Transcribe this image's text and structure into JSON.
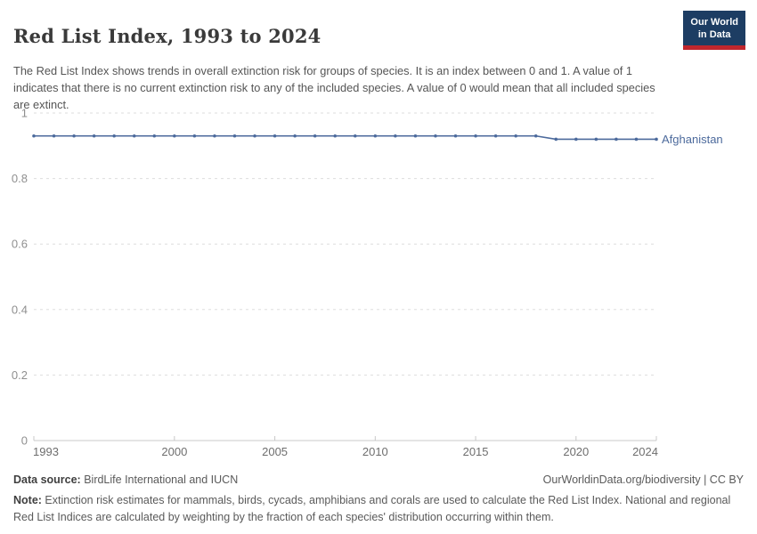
{
  "header": {
    "title": "Red List Index, 1993 to 2024",
    "subtitle": "The Red List Index shows trends in overall extinction risk for groups of species. It is an index between 0 and 1. A value of 1 indicates that there is no current extinction risk to any of the included species. A value of 0 would mean that all included species are extinct.",
    "logo": {
      "line1": "Our World",
      "line2": "in Data"
    }
  },
  "chart_data": {
    "type": "line",
    "title": "Red List Index, 1993 to 2024",
    "x": [
      1993,
      1994,
      1995,
      1996,
      1997,
      1998,
      1999,
      2000,
      2001,
      2002,
      2003,
      2004,
      2005,
      2006,
      2007,
      2008,
      2009,
      2010,
      2011,
      2012,
      2013,
      2014,
      2015,
      2016,
      2017,
      2018,
      2019,
      2020,
      2021,
      2022,
      2023,
      2024
    ],
    "series": [
      {
        "name": "Afghanistan",
        "values": [
          0.93,
          0.93,
          0.93,
          0.93,
          0.93,
          0.93,
          0.93,
          0.93,
          0.93,
          0.93,
          0.93,
          0.93,
          0.93,
          0.93,
          0.93,
          0.93,
          0.93,
          0.93,
          0.93,
          0.93,
          0.93,
          0.93,
          0.93,
          0.93,
          0.93,
          0.93,
          0.92,
          0.92,
          0.92,
          0.92,
          0.92,
          0.92
        ]
      }
    ],
    "xlabel": "",
    "ylabel": "",
    "ylim": [
      0,
      1
    ],
    "xlim": [
      1993,
      2024
    ],
    "yticks": [
      0,
      0.2,
      0.4,
      0.6,
      0.8,
      1
    ],
    "ytick_labels": [
      "0",
      "0.2",
      "0.4",
      "0.6",
      "0.8",
      "1"
    ],
    "xticks": [
      1993,
      2000,
      2005,
      2010,
      2015,
      2020,
      2024
    ],
    "grid": "horizontal-dashed",
    "legend_position": "end-of-line",
    "markers": true
  },
  "footer": {
    "datasource_label": "Data source:",
    "datasource_text": " BirdLife International and IUCN",
    "link_text": "OurWorldinData.org/biodiversity | CC BY",
    "note_label": "Note:",
    "note_text": " Extinction risk estimates for mammals, birds, cycads, amphibians and corals are used to calculate the Red List Index. National and regional Red List Indices are calculated by weighting by the fraction of each species' distribution occurring within them."
  },
  "colors": {
    "line": "#4c6a9c",
    "entity_label": "#4c6a9c",
    "grid": "#dddddd",
    "axis": "#c8c8c8",
    "y_tick_label": "#8f8f8f",
    "x_tick_label": "#6e6e6e",
    "title": "#3a3a3a",
    "subtitle": "#555555",
    "logo_bg": "#1d3d63",
    "logo_bar": "#c0262d"
  }
}
